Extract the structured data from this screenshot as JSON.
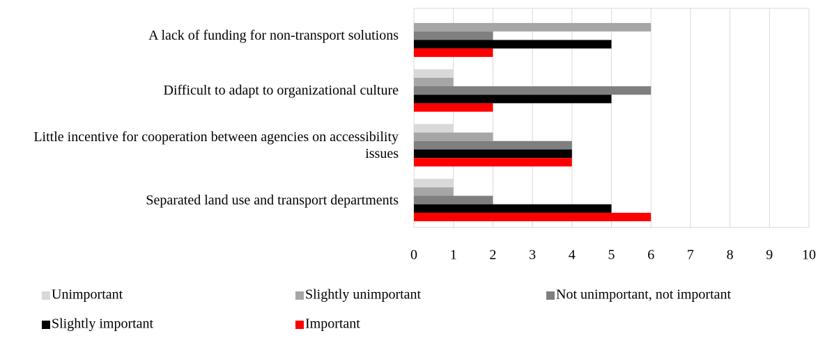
{
  "chart_data": {
    "type": "hbar",
    "categories": [
      "A lack of funding for non-transport solutions",
      "Difficult to adapt to organizational culture",
      "Little incentive for cooperation between agencies on accessibility issues",
      "Separated land use and transport departments"
    ],
    "series": [
      {
        "name": "Unimportant",
        "color": "#d9d9d9",
        "values": [
          0,
          1,
          1,
          1
        ]
      },
      {
        "name": "Slightly unimportant",
        "color": "#a6a6a6",
        "values": [
          6,
          1,
          2,
          1
        ]
      },
      {
        "name": "Not unimportant, not important",
        "color": "#7f7f7f",
        "values": [
          2,
          6,
          4,
          2
        ]
      },
      {
        "name": "Slightly important",
        "color": "#000000",
        "values": [
          5,
          5,
          4,
          5
        ]
      },
      {
        "name": "Important",
        "color": "#ff0000",
        "values": [
          2,
          2,
          4,
          6
        ]
      }
    ],
    "xlim": [
      0,
      10
    ],
    "xticks": [
      0,
      1,
      2,
      3,
      4,
      5,
      6,
      7,
      8,
      9,
      10
    ],
    "grid": true,
    "legend": "bottom"
  }
}
